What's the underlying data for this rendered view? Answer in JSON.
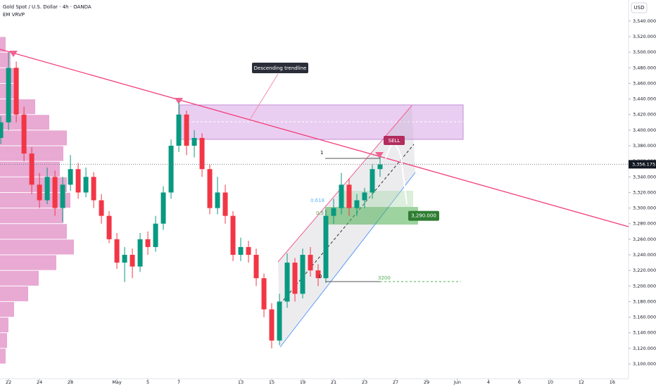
{
  "chart_data": {
    "type": "candlestick",
    "title": "Gold Spot / U.S. Dollar · 4h · OANDA",
    "indicator": "EM VRVP",
    "currency": "USD",
    "up_color": "#089981",
    "down_color": "#f23645",
    "x": [
      -0.5,
      0,
      0.5,
      1,
      1.5,
      2,
      2.5,
      3,
      3.5,
      4,
      4.5,
      5,
      5.5,
      6,
      6.5,
      7,
      7.5,
      8,
      8.5,
      9,
      9.5,
      10,
      10.5,
      11,
      11.5,
      12,
      12.5,
      13,
      13.5,
      14,
      14.5,
      15,
      15.5,
      16,
      16.5,
      17,
      17.5,
      18,
      18.5,
      19,
      19.5,
      20,
      20.5,
      21,
      21.5,
      22,
      22.5,
      23,
      23.5,
      24
    ],
    "open": [
      3390,
      3410,
      3480,
      3420,
      3370,
      3330,
      3310,
      3340,
      3300,
      3330,
      3350,
      3320,
      3340,
      3310,
      3290,
      3260,
      3230,
      3240,
      3225,
      3260,
      3250,
      3280,
      3320,
      3380,
      3420,
      3380,
      3390,
      3350,
      3300,
      3320,
      3290,
      3240,
      3250,
      3240,
      3210,
      3170,
      3130,
      3180,
      3230,
      3190,
      3240,
      3220,
      3210,
      3290,
      3300,
      3330,
      3300,
      3310,
      3320,
      3350
    ],
    "high": [
      3418,
      3500,
      3488,
      3430,
      3378,
      3345,
      3352,
      3348,
      3340,
      3368,
      3358,
      3352,
      3346,
      3318,
      3296,
      3268,
      3250,
      3248,
      3268,
      3270,
      3290,
      3328,
      3388,
      3435,
      3425,
      3400,
      3396,
      3356,
      3340,
      3330,
      3296,
      3262,
      3258,
      3248,
      3216,
      3178,
      3190,
      3242,
      3236,
      3248,
      3250,
      3228,
      3298,
      3312,
      3345,
      3338,
      3318,
      3326,
      3356,
      3366
    ],
    "low": [
      3382,
      3400,
      3410,
      3360,
      3318,
      3300,
      3305,
      3290,
      3282,
      3322,
      3312,
      3314,
      3300,
      3280,
      3255,
      3222,
      3205,
      3210,
      3218,
      3240,
      3244,
      3272,
      3312,
      3372,
      3368,
      3365,
      3340,
      3292,
      3292,
      3280,
      3232,
      3232,
      3230,
      3200,
      3160,
      3120,
      3124,
      3172,
      3180,
      3184,
      3212,
      3200,
      3204,
      3280,
      3292,
      3290,
      3290,
      3300,
      3312,
      3340
    ],
    "close": [
      3410,
      3480,
      3420,
      3370,
      3330,
      3310,
      3340,
      3300,
      3330,
      3350,
      3320,
      3340,
      3310,
      3290,
      3260,
      3230,
      3240,
      3225,
      3260,
      3250,
      3280,
      3320,
      3380,
      3420,
      3380,
      3390,
      3350,
      3300,
      3320,
      3290,
      3240,
      3250,
      3240,
      3210,
      3170,
      3130,
      3180,
      3230,
      3190,
      3240,
      3220,
      3210,
      3290,
      3300,
      3330,
      3300,
      3310,
      3320,
      3350,
      3356
    ],
    "xlim": [
      -0.55,
      40.05
    ],
    "ylim": [
      3081,
      3567
    ],
    "xticks": [
      {
        "value": 0,
        "label": "22"
      },
      {
        "value": 2,
        "label": "24"
      },
      {
        "value": 4,
        "label": "28"
      },
      {
        "value": 7,
        "label": "May"
      },
      {
        "value": 9,
        "label": "5"
      },
      {
        "value": 11,
        "label": "7"
      },
      {
        "value": 15,
        "label": "13"
      },
      {
        "value": 17,
        "label": "15"
      },
      {
        "value": 19,
        "label": "19"
      },
      {
        "value": 21,
        "label": "21"
      },
      {
        "value": 23,
        "label": "23"
      },
      {
        "value": 25,
        "label": "27"
      },
      {
        "value": 27,
        "label": "29"
      },
      {
        "value": 29,
        "label": "Jun"
      },
      {
        "value": 31,
        "label": "4"
      },
      {
        "value": 33,
        "label": "6"
      },
      {
        "value": 35,
        "label": "10"
      },
      {
        "value": 37,
        "label": "12"
      },
      {
        "value": 39,
        "label": "16"
      }
    ],
    "yticks": [
      {
        "value": 3100,
        "label": "3,100.000"
      },
      {
        "value": 3120,
        "label": "3,120.000"
      },
      {
        "value": 3140,
        "label": "3,140.000"
      },
      {
        "value": 3160,
        "label": "3,160.000"
      },
      {
        "value": 3180,
        "label": "3,180.000"
      },
      {
        "value": 3200,
        "label": "3,200.000"
      },
      {
        "value": 3220,
        "label": "3,220.000"
      },
      {
        "value": 3240,
        "label": "3,240.000"
      },
      {
        "value": 3260,
        "label": "3,260.000"
      },
      {
        "value": 3280,
        "label": "3,280.000"
      },
      {
        "value": 3300,
        "label": "3,300.000"
      },
      {
        "value": 3320,
        "label": "3,320.000"
      },
      {
        "value": 3340,
        "label": "3,340.000"
      },
      {
        "value": 3360,
        "label": "3,360.000"
      },
      {
        "value": 3380,
        "label": "3,380.000"
      },
      {
        "value": 3400,
        "label": "3,400.000"
      },
      {
        "value": 3420,
        "label": "3,420.000"
      },
      {
        "value": 3440,
        "label": "3,440.000"
      },
      {
        "value": 3460,
        "label": "3,460.000"
      },
      {
        "value": 3480,
        "label": "3,480.000"
      },
      {
        "value": 3500,
        "label": "3,500.000"
      },
      {
        "value": 3520,
        "label": "3,520.000"
      },
      {
        "value": 3540,
        "label": "3,540.000"
      }
    ],
    "last_price": {
      "value": 3356.175,
      "label": "3,356.175"
    },
    "target": {
      "value": 3290,
      "label": "3,290.000"
    },
    "volume_profile": {
      "color": "#d96fb5",
      "levels": [
        3110,
        3130,
        3150,
        3170,
        3190,
        3210,
        3230,
        3250,
        3270,
        3290,
        3310,
        3330,
        3350,
        3370,
        3390,
        3410,
        3430,
        3450,
        3470,
        3490,
        3510
      ],
      "volumes": [
        8,
        10,
        12,
        20,
        40,
        55,
        80,
        105,
        95,
        90,
        100,
        95,
        85,
        90,
        95,
        70,
        50,
        25,
        20,
        15,
        8
      ]
    },
    "annotations": [
      "Descending trendline",
      "SELL",
      "1",
      "0.618",
      "0.5",
      "0",
      "3200"
    ]
  }
}
